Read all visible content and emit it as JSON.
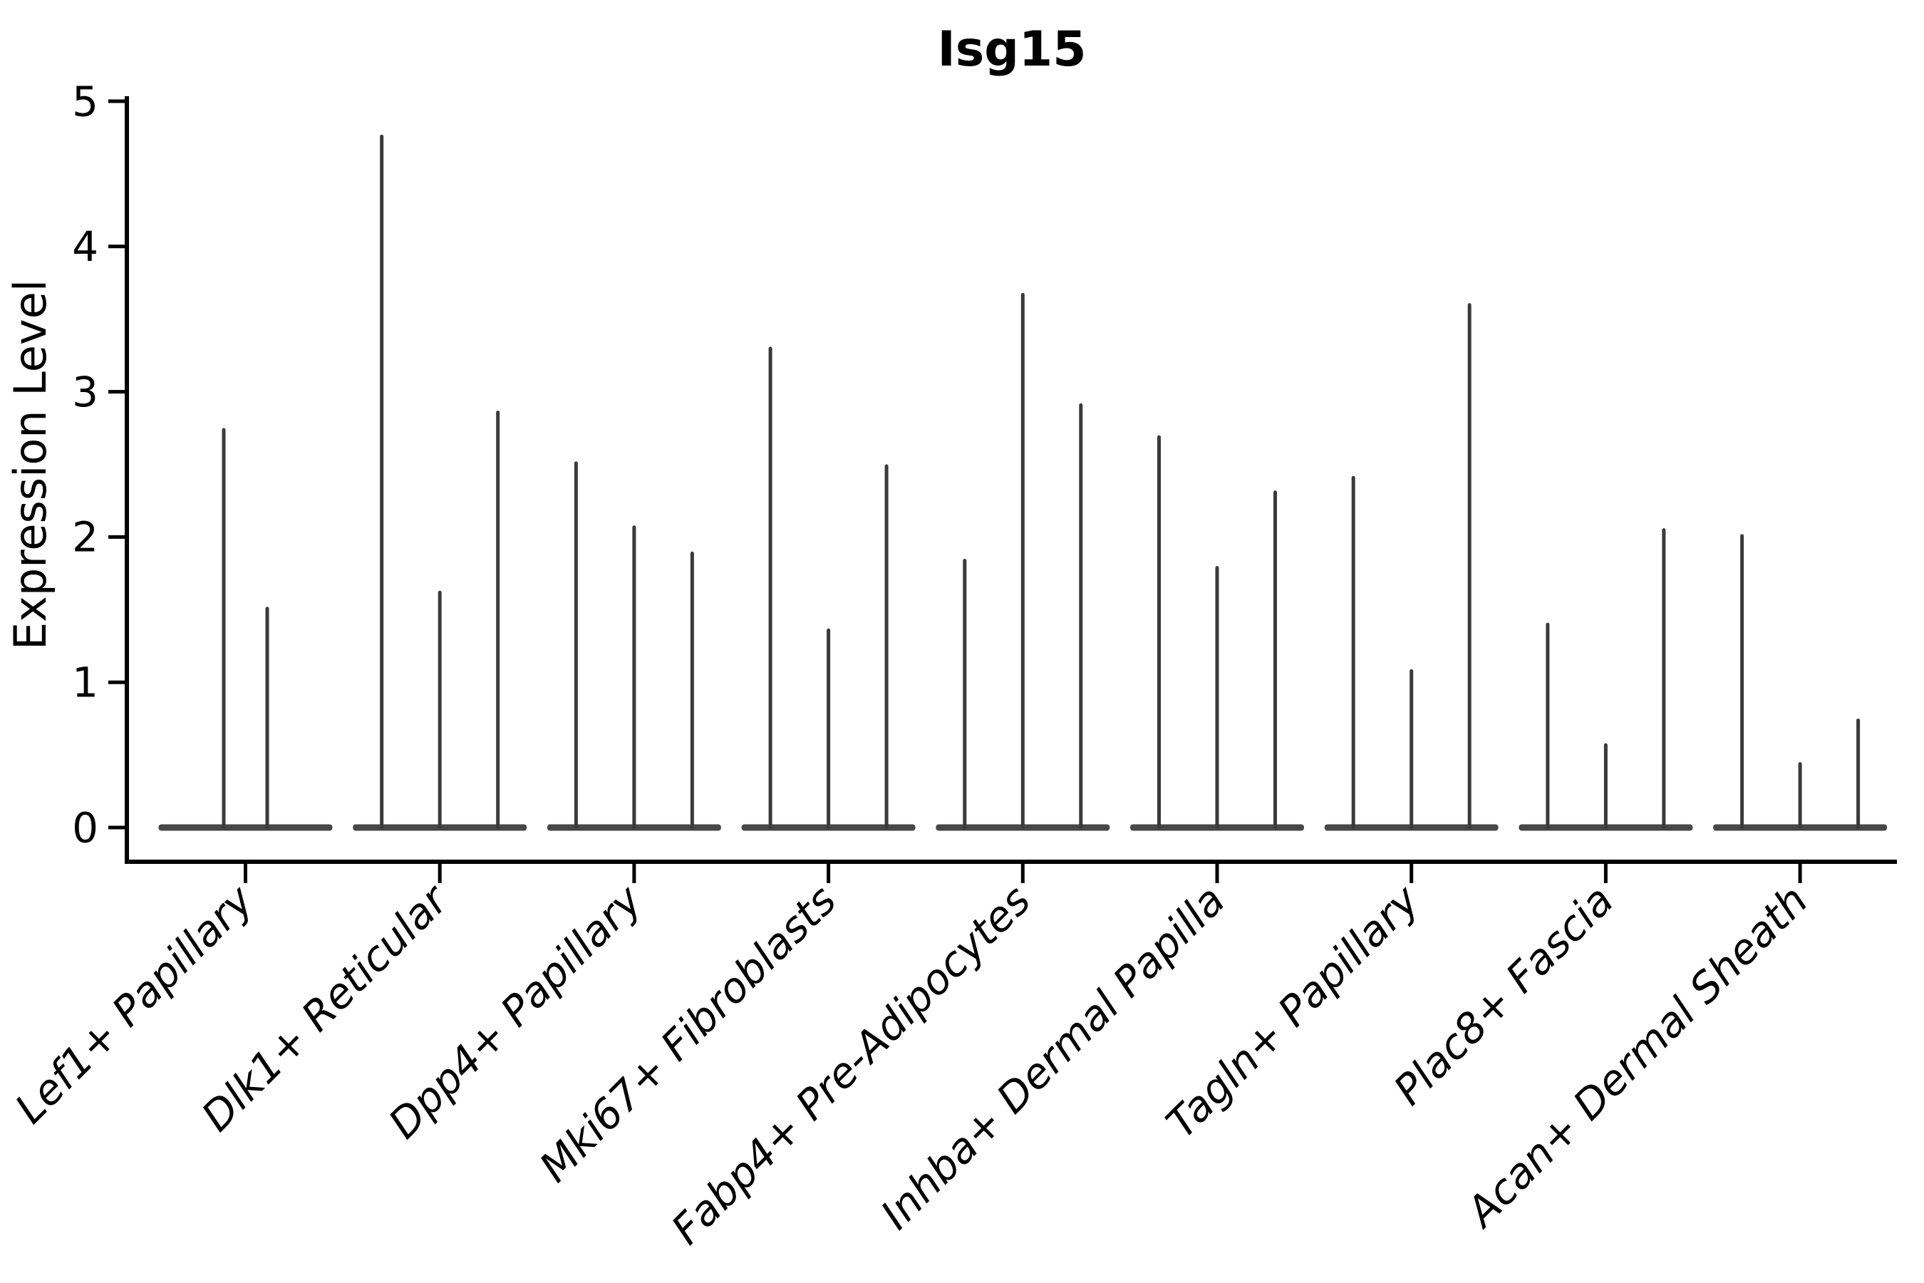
{
  "title": "Isg15",
  "chart_data": {
    "type": "violin",
    "title": "Isg15",
    "xlabel": "",
    "ylabel": "Expression Level",
    "ylim": [
      0,
      5
    ],
    "yticks": [
      "0",
      "1",
      "2",
      "3",
      "4",
      "5"
    ],
    "grid": false,
    "legend_position": "none",
    "style_note": "needle-thin violin plot (Seurat-style); each category has 2-3 near-zero-width violins with a flat base at y=0 and a thin vertical spike to the maximum expression value; x tick labels italic and rotated 45 degrees",
    "categories": [
      "Lef1+ Papillary",
      "Dlk1+ Reticular",
      "Dpp4+ Papillary",
      "Mki67+ Fibroblasts",
      "Fabp4+ Pre-Adipocytes",
      "Inhba+ Dermal Papilla",
      "Tagln+ Papillary",
      "Plac8+ Fascia",
      "Acan+ Dermal Sheath"
    ],
    "groups": [
      {
        "label": "Lef1+ Papillary",
        "violin_maxima": [
          2.75,
          1.52
        ]
      },
      {
        "label": "Dlk1+ Reticular",
        "violin_maxima": [
          4.77,
          1.63,
          2.87
        ]
      },
      {
        "label": "Dpp4+ Papillary",
        "violin_maxima": [
          2.52,
          2.08,
          1.9
        ]
      },
      {
        "label": "Mki67+ Fibroblasts",
        "violin_maxima": [
          3.31,
          1.37,
          2.5
        ]
      },
      {
        "label": "Fabp4+ Pre-Adipocytes",
        "violin_maxima": [
          1.85,
          3.68,
          2.92
        ]
      },
      {
        "label": "Inhba+ Dermal Papilla",
        "violin_maxima": [
          2.7,
          1.8,
          2.32
        ]
      },
      {
        "label": "Tagln+ Papillary",
        "violin_maxima": [
          2.42,
          1.09,
          3.61
        ]
      },
      {
        "label": "Plac8+ Fascia",
        "violin_maxima": [
          1.41,
          0.58,
          2.06
        ]
      },
      {
        "label": "Acan+ Dermal Sheath",
        "violin_maxima": [
          2.02,
          0.45,
          0.75
        ]
      }
    ],
    "colors": {
      "violin": "#3a3a3a",
      "baseline": "#474747",
      "axis": "#000000",
      "text": "#000000",
      "background": "#ffffff"
    }
  }
}
